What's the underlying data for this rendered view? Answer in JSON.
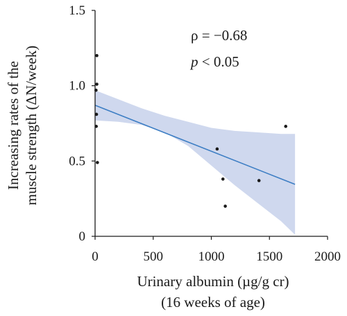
{
  "chart_data": {
    "type": "scatter",
    "title": "",
    "xlabel": "Urinary albumin (µg/g cr)",
    "xlabel_line2": "(16 weeks of age)",
    "ylabel": "Increasing rates of the",
    "ylabel_line2": "muscle strength (ΔN/week)",
    "xlim": [
      0,
      2000
    ],
    "ylim": [
      0,
      1.5
    ],
    "x_ticks": [
      0,
      500,
      1000,
      1500,
      2000
    ],
    "x_tick_labels": [
      "0",
      "500",
      "1000",
      "1500",
      "2000"
    ],
    "y_ticks": [
      0,
      0.5,
      1.0,
      1.5
    ],
    "y_tick_labels": [
      "0",
      "0.5",
      "1.0",
      "1.5"
    ],
    "grid": false,
    "points": [
      {
        "x": 15,
        "y": 1.2
      },
      {
        "x": 15,
        "y": 1.01
      },
      {
        "x": 8,
        "y": 0.97
      },
      {
        "x": 12,
        "y": 0.81
      },
      {
        "x": 10,
        "y": 0.73
      },
      {
        "x": 20,
        "y": 0.49
      },
      {
        "x": 1050,
        "y": 0.58
      },
      {
        "x": 1100,
        "y": 0.38
      },
      {
        "x": 1120,
        "y": 0.2
      },
      {
        "x": 1410,
        "y": 0.37
      },
      {
        "x": 1640,
        "y": 0.73
      }
    ],
    "regression_line": {
      "x": [
        0,
        1720
      ],
      "y": [
        0.87,
        0.345
      ]
    },
    "confidence_band": {
      "x": [
        0,
        200,
        400,
        600,
        800,
        1000,
        1200,
        1400,
        1600,
        1720
      ],
      "upper": [
        0.97,
        0.91,
        0.85,
        0.8,
        0.76,
        0.72,
        0.7,
        0.69,
        0.68,
        0.68
      ],
      "lower": [
        0.77,
        0.76,
        0.74,
        0.69,
        0.6,
        0.47,
        0.34,
        0.22,
        0.1,
        0.01
      ]
    },
    "annotations": {
      "rho": "ρ = −0.68",
      "p_italic": "p",
      "p_rest": " < 0.05"
    },
    "colors": {
      "line": "#3d7ec4",
      "band": "#cfd8ee",
      "points": "#1a1a1a",
      "axis": "#1a1a1a"
    }
  }
}
